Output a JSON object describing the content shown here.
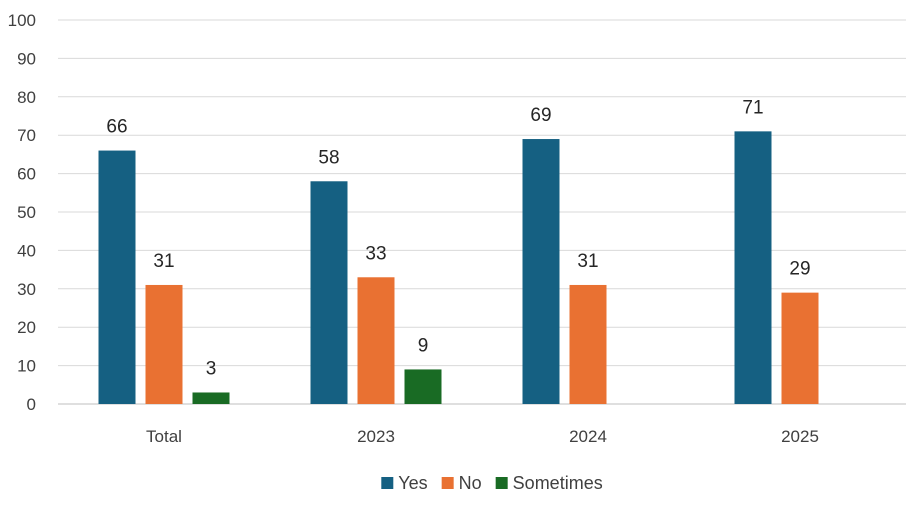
{
  "chart_data": {
    "type": "bar",
    "categories": [
      "Total",
      "2023",
      "2024",
      "2025"
    ],
    "series": [
      {
        "name": "Yes",
        "color": "#156082",
        "values": [
          66,
          58,
          69,
          71
        ]
      },
      {
        "name": "No",
        "color": "#E97132",
        "values": [
          31,
          33,
          31,
          29
        ]
      },
      {
        "name": "Sometimes",
        "color": "#196B24",
        "values": [
          3,
          9,
          null,
          null
        ]
      }
    ],
    "title": "",
    "xlabel": "",
    "ylabel": "",
    "ylim": [
      0,
      100
    ],
    "yticks": [
      "0",
      "10",
      "20",
      "30",
      "40",
      "50",
      "60",
      "70",
      "80",
      "90",
      "100"
    ],
    "grid": true,
    "legend_position": "bottom",
    "data_labels": true
  }
}
